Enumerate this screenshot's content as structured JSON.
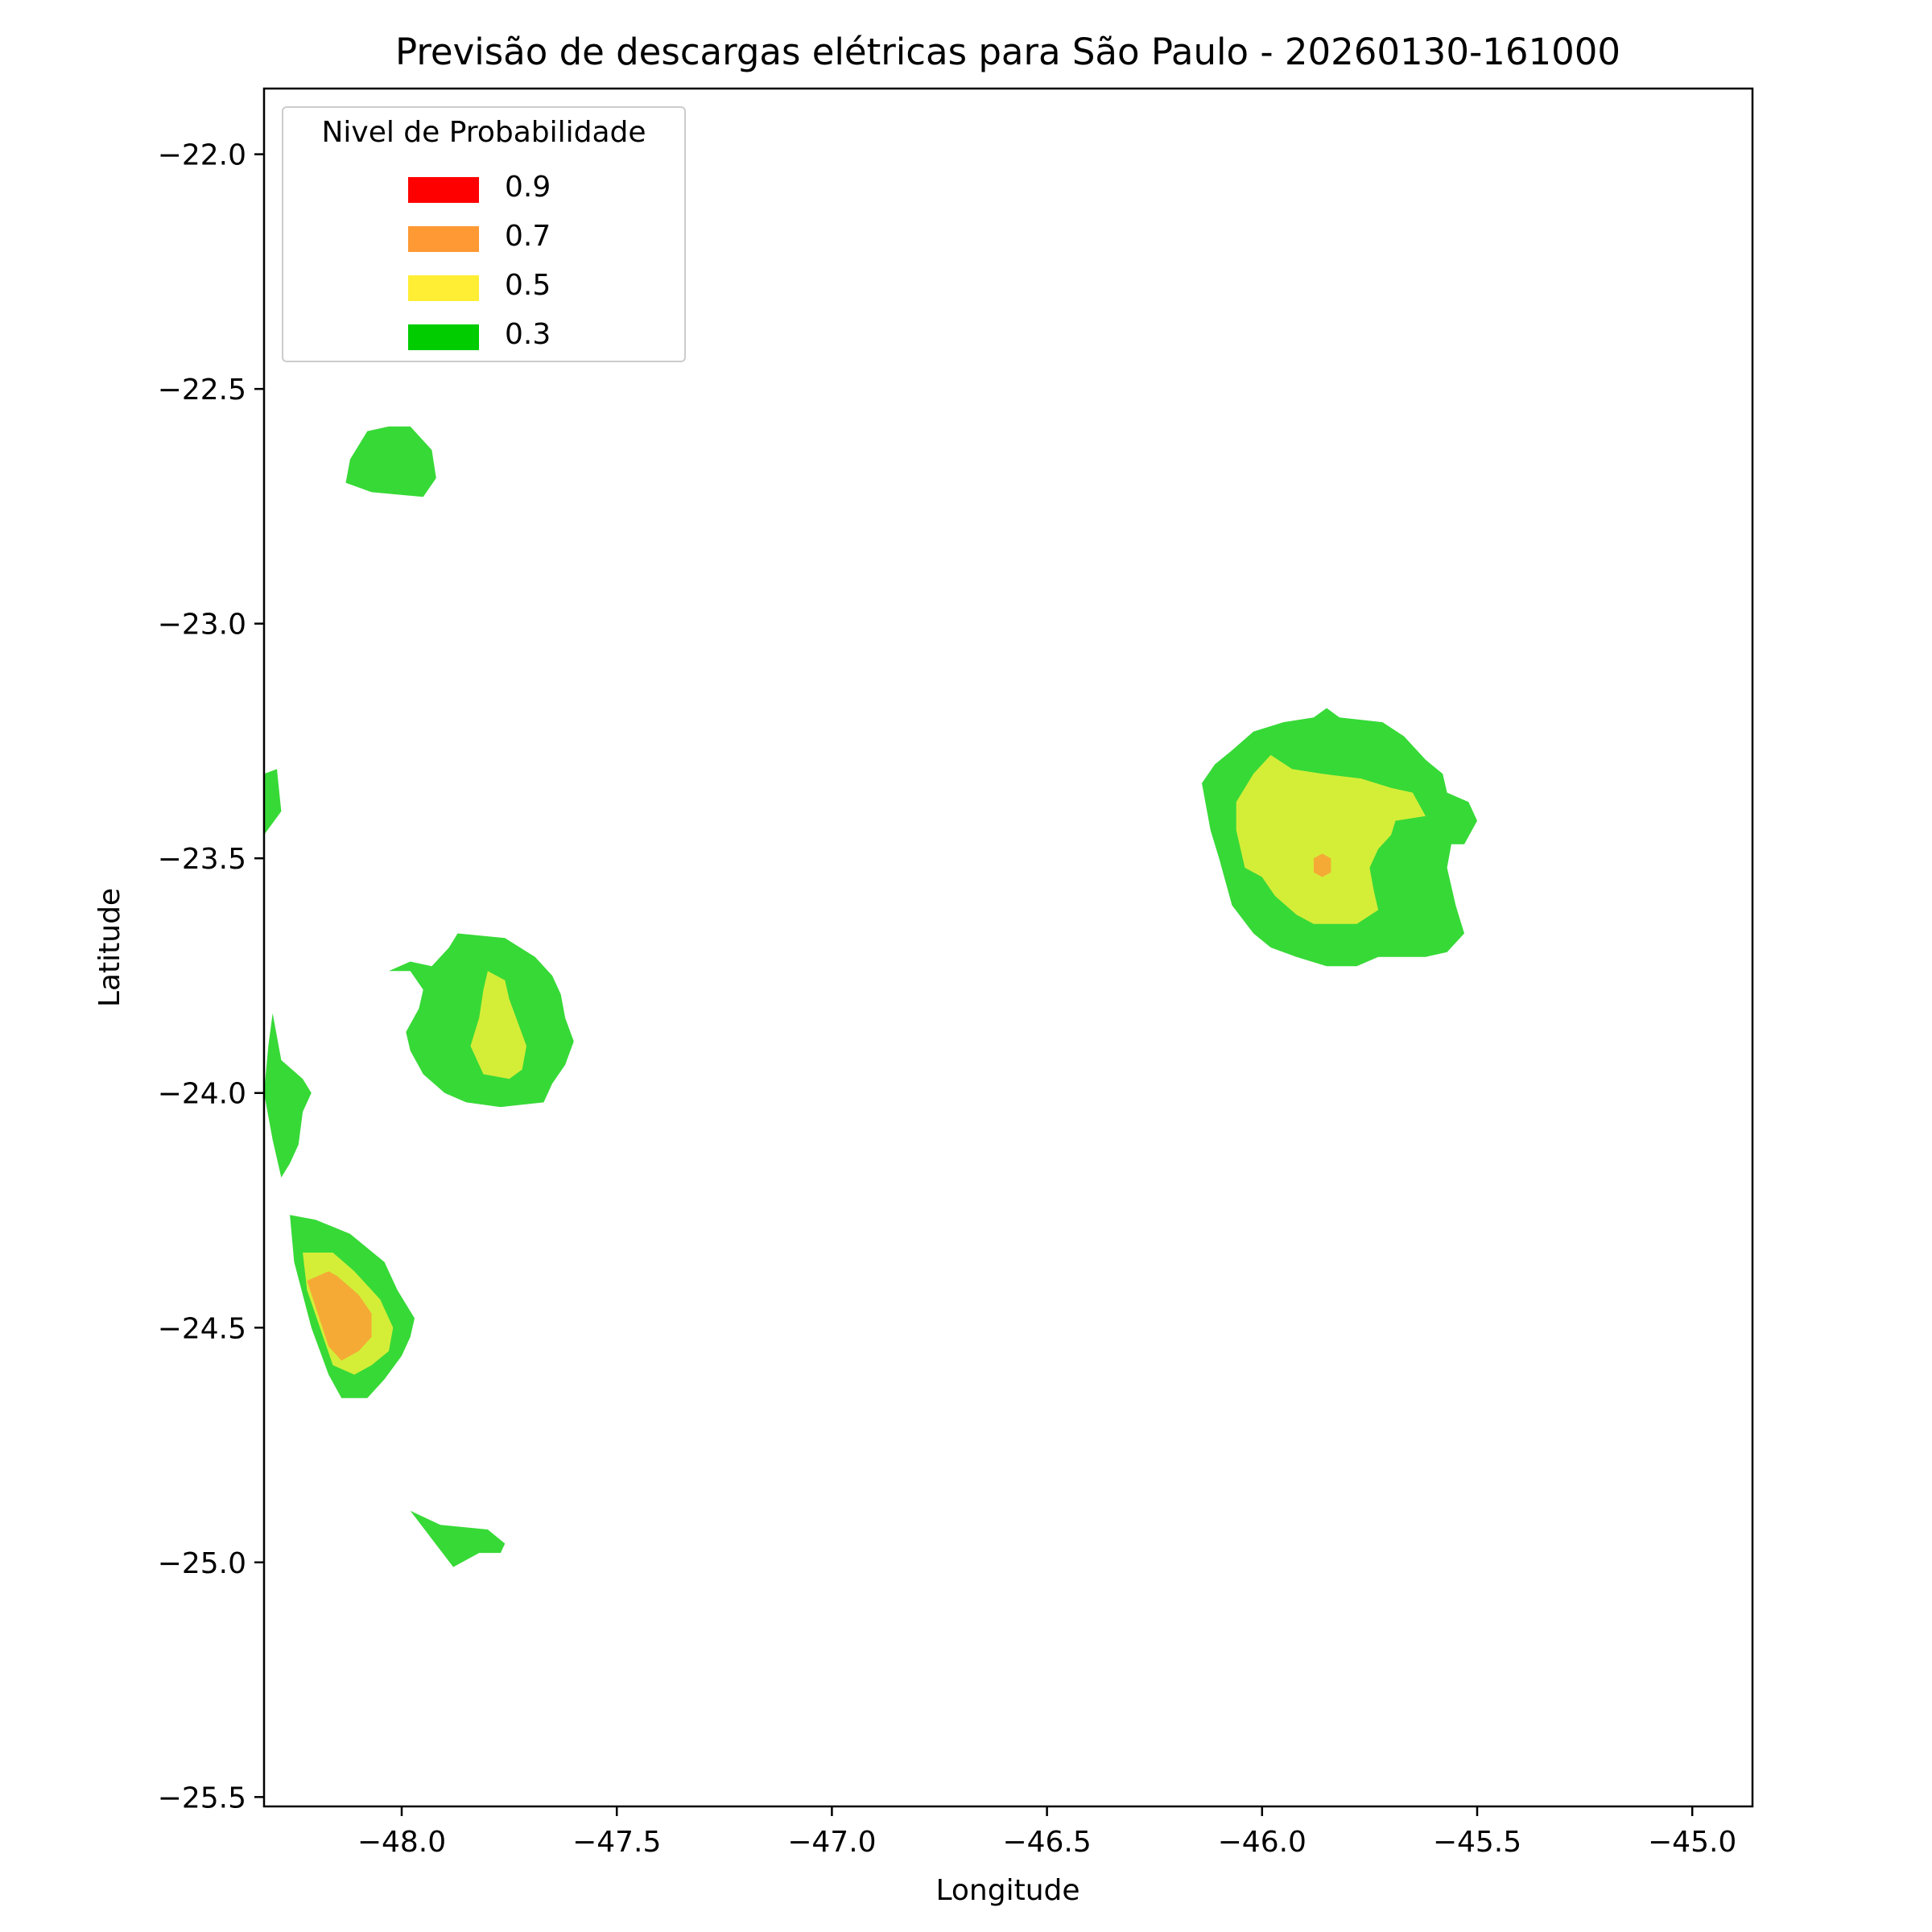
{
  "chart_data": {
    "type": "heatmap",
    "title": "Previsão de descargas elétricas para São Paulo - 20260130-161000",
    "xlabel": "Longitude",
    "ylabel": "Latitude",
    "xlim": [
      -48.32,
      -44.86
    ],
    "ylim": [
      -25.52,
      -21.86
    ],
    "xticks": [
      -48.0,
      -47.5,
      -47.0,
      -46.5,
      -46.0,
      -45.5,
      -45.0
    ],
    "xtick_labels": [
      "−48.0",
      "−47.5",
      "−47.0",
      "−46.5",
      "−46.0",
      "−45.5",
      "−45.0"
    ],
    "yticks": [
      -22.0,
      -22.5,
      -23.0,
      -23.5,
      -24.0,
      -24.5,
      -25.0,
      -25.5
    ],
    "ytick_labels": [
      "−22.0",
      "−22.5",
      "−23.0",
      "−23.5",
      "−24.0",
      "−24.5",
      "−25.0",
      "−25.5"
    ],
    "grid": false,
    "legend": {
      "title": "Nivel de Probabilidade",
      "placement": "top-left",
      "entries": [
        {
          "label": "0.9",
          "color": "#ff0000"
        },
        {
          "label": "0.7",
          "color": "#ff9933"
        },
        {
          "label": "0.5",
          "color": "#ffee33"
        },
        {
          "label": "0.3",
          "color": "#00cc00"
        }
      ]
    },
    "level_fill_colors": {
      "0.3": "#37d937",
      "0.5": "#d4ee38",
      "0.7": "#f5aa35"
    },
    "regions": [
      {
        "level": "0.3",
        "points": [
          [
            -48.03,
            -22.58
          ],
          [
            -47.98,
            -22.58
          ],
          [
            -47.93,
            -22.63
          ],
          [
            -47.92,
            -22.69
          ],
          [
            -47.95,
            -22.73
          ],
          [
            -48.07,
            -22.72
          ],
          [
            -48.13,
            -22.7
          ],
          [
            -48.12,
            -22.65
          ],
          [
            -48.08,
            -22.59
          ]
        ]
      },
      {
        "level": "0.3",
        "points": [
          [
            -45.85,
            -23.18
          ],
          [
            -45.82,
            -23.2
          ],
          [
            -45.72,
            -23.21
          ],
          [
            -45.67,
            -23.24
          ],
          [
            -45.62,
            -23.29
          ],
          [
            -45.58,
            -23.32
          ],
          [
            -45.57,
            -23.36
          ],
          [
            -45.52,
            -23.38
          ],
          [
            -45.5,
            -23.42
          ],
          [
            -45.53,
            -23.47
          ],
          [
            -45.56,
            -23.47
          ],
          [
            -45.57,
            -23.52
          ],
          [
            -45.55,
            -23.6
          ],
          [
            -45.54,
            -23.63
          ],
          [
            -45.53,
            -23.66
          ],
          [
            -45.57,
            -23.7
          ],
          [
            -45.62,
            -23.71
          ],
          [
            -45.73,
            -23.71
          ],
          [
            -45.78,
            -23.73
          ],
          [
            -45.85,
            -23.73
          ],
          [
            -45.92,
            -23.71
          ],
          [
            -45.98,
            -23.69
          ],
          [
            -46.02,
            -23.66
          ],
          [
            -46.07,
            -23.6
          ],
          [
            -46.1,
            -23.5
          ],
          [
            -46.12,
            -23.44
          ],
          [
            -46.14,
            -23.34
          ],
          [
            -46.11,
            -23.3
          ],
          [
            -46.07,
            -23.27
          ],
          [
            -46.02,
            -23.23
          ],
          [
            -45.95,
            -23.21
          ],
          [
            -45.88,
            -23.2
          ]
        ]
      },
      {
        "level": "0.5",
        "points": [
          [
            -45.98,
            -23.28
          ],
          [
            -45.93,
            -23.31
          ],
          [
            -45.86,
            -23.32
          ],
          [
            -45.77,
            -23.33
          ],
          [
            -45.7,
            -23.35
          ],
          [
            -45.65,
            -23.36
          ],
          [
            -45.62,
            -23.41
          ],
          [
            -45.69,
            -23.42
          ],
          [
            -45.7,
            -23.45
          ],
          [
            -45.73,
            -23.48
          ],
          [
            -45.75,
            -23.52
          ],
          [
            -45.74,
            -23.57
          ],
          [
            -45.73,
            -23.61
          ],
          [
            -45.78,
            -23.64
          ],
          [
            -45.88,
            -23.64
          ],
          [
            -45.92,
            -23.62
          ],
          [
            -45.97,
            -23.58
          ],
          [
            -46.0,
            -23.54
          ],
          [
            -46.04,
            -23.52
          ],
          [
            -46.06,
            -23.44
          ],
          [
            -46.06,
            -23.38
          ],
          [
            -46.02,
            -23.32
          ]
        ]
      },
      {
        "level": "0.3",
        "points": [
          [
            -47.87,
            -23.66
          ],
          [
            -47.76,
            -23.67
          ],
          [
            -47.69,
            -23.71
          ],
          [
            -47.65,
            -23.75
          ],
          [
            -47.63,
            -23.79
          ],
          [
            -47.62,
            -23.84
          ],
          [
            -47.6,
            -23.89
          ],
          [
            -47.62,
            -23.94
          ],
          [
            -47.65,
            -23.98
          ],
          [
            -47.67,
            -24.02
          ],
          [
            -47.77,
            -24.03
          ],
          [
            -47.85,
            -24.02
          ],
          [
            -47.9,
            -24.0
          ],
          [
            -47.95,
            -23.96
          ],
          [
            -47.98,
            -23.91
          ],
          [
            -47.99,
            -23.87
          ],
          [
            -47.96,
            -23.82
          ],
          [
            -47.95,
            -23.78
          ],
          [
            -47.98,
            -23.74
          ],
          [
            -48.03,
            -23.74
          ],
          [
            -47.98,
            -23.72
          ],
          [
            -47.93,
            -23.73
          ],
          [
            -47.89,
            -23.69
          ]
        ]
      },
      {
        "level": "0.5",
        "points": [
          [
            -47.8,
            -23.74
          ],
          [
            -47.76,
            -23.76
          ],
          [
            -47.75,
            -23.8
          ],
          [
            -47.73,
            -23.85
          ],
          [
            -47.71,
            -23.9
          ],
          [
            -47.72,
            -23.95
          ],
          [
            -47.75,
            -23.97
          ],
          [
            -47.81,
            -23.96
          ],
          [
            -47.84,
            -23.9
          ],
          [
            -47.82,
            -23.84
          ],
          [
            -47.81,
            -23.78
          ]
        ]
      },
      {
        "level": "0.3",
        "points": [
          [
            -48.32,
            -23.32
          ],
          [
            -48.29,
            -23.31
          ],
          [
            -48.28,
            -23.4
          ],
          [
            -48.32,
            -23.45
          ]
        ]
      },
      {
        "level": "0.3",
        "points": [
          [
            -48.3,
            -23.83
          ],
          [
            -48.28,
            -23.93
          ],
          [
            -48.23,
            -23.97
          ],
          [
            -48.21,
            -24.0
          ],
          [
            -48.23,
            -24.04
          ],
          [
            -48.24,
            -24.11
          ],
          [
            -48.26,
            -24.15
          ],
          [
            -48.28,
            -24.18
          ],
          [
            -48.3,
            -24.1
          ],
          [
            -48.32,
            -24.0
          ],
          [
            -48.31,
            -23.9
          ]
        ]
      },
      {
        "level": "0.3",
        "points": [
          [
            -48.26,
            -24.26
          ],
          [
            -48.2,
            -24.27
          ],
          [
            -48.12,
            -24.3
          ],
          [
            -48.04,
            -24.36
          ],
          [
            -48.01,
            -24.42
          ],
          [
            -47.97,
            -24.48
          ],
          [
            -47.98,
            -24.52
          ],
          [
            -48.0,
            -24.56
          ],
          [
            -48.04,
            -24.61
          ],
          [
            -48.08,
            -24.65
          ],
          [
            -48.14,
            -24.65
          ],
          [
            -48.17,
            -24.6
          ],
          [
            -48.21,
            -24.5
          ],
          [
            -48.25,
            -24.36
          ]
        ]
      },
      {
        "level": "0.5",
        "points": [
          [
            -48.23,
            -24.34
          ],
          [
            -48.16,
            -24.34
          ],
          [
            -48.11,
            -24.38
          ],
          [
            -48.05,
            -24.44
          ],
          [
            -48.02,
            -24.5
          ],
          [
            -48.03,
            -24.55
          ],
          [
            -48.07,
            -24.58
          ],
          [
            -48.11,
            -24.6
          ],
          [
            -48.16,
            -24.58
          ],
          [
            -48.19,
            -24.5
          ],
          [
            -48.22,
            -24.42
          ]
        ]
      },
      {
        "level": "0.7",
        "points": [
          [
            -48.22,
            -24.4
          ],
          [
            -48.17,
            -24.38
          ],
          [
            -48.15,
            -24.39
          ],
          [
            -48.1,
            -24.43
          ],
          [
            -48.07,
            -24.47
          ],
          [
            -48.07,
            -24.52
          ],
          [
            -48.1,
            -24.55
          ],
          [
            -48.14,
            -24.57
          ],
          [
            -48.17,
            -24.54
          ]
        ]
      },
      {
        "level": "0.7",
        "points": [
          [
            -45.84,
            -23.5
          ],
          [
            -45.86,
            -23.49
          ],
          [
            -45.88,
            -23.5
          ],
          [
            -45.88,
            -23.53
          ],
          [
            -45.86,
            -23.54
          ],
          [
            -45.84,
            -23.53
          ]
        ]
      },
      {
        "level": "0.3",
        "points": [
          [
            -47.98,
            -24.89
          ],
          [
            -47.91,
            -24.92
          ],
          [
            -47.8,
            -24.93
          ],
          [
            -47.76,
            -24.96
          ],
          [
            -47.77,
            -24.98
          ],
          [
            -47.82,
            -24.98
          ],
          [
            -47.88,
            -25.01
          ],
          [
            -47.93,
            -24.95
          ]
        ]
      }
    ]
  }
}
